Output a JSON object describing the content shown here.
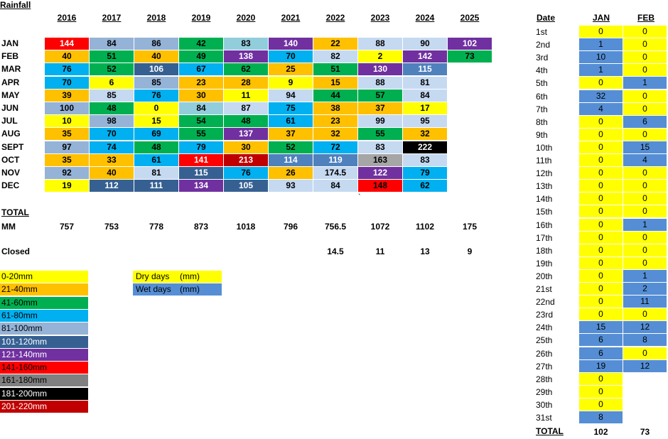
{
  "title": "Rainfall",
  "years": [
    "2016",
    "2017",
    "2018",
    "2019",
    "2020",
    "2021",
    "2022",
    "2023",
    "2024",
    "2025"
  ],
  "months": [
    "JAN",
    "FEB",
    "MAR",
    "APR",
    "MAY",
    "JUN",
    "JUL",
    "AUG",
    "SEPT",
    "OCT",
    "NOV",
    "DEC"
  ],
  "rows": [
    [
      [
        "144",
        "#ff0000",
        "#ffffff"
      ],
      [
        "84",
        "#95b3d7",
        "#000"
      ],
      [
        "86",
        "#95b3d7",
        "#000"
      ],
      [
        "42",
        "#00b050",
        "#000"
      ],
      [
        "83",
        "#92cddc",
        "#000"
      ],
      [
        "140",
        "#7030a0",
        "#ffffff"
      ],
      [
        "22",
        "#ffc000",
        "#000"
      ],
      [
        "88",
        "#c5d9f1",
        "#000"
      ],
      [
        "90",
        "#c5d9f1",
        "#000"
      ],
      [
        "102",
        "#7030a0",
        "#ffffff"
      ]
    ],
    [
      [
        "40",
        "#ffc000",
        "#000"
      ],
      [
        "51",
        "#00b050",
        "#000"
      ],
      [
        "40",
        "#ffc000",
        "#000"
      ],
      [
        "49",
        "#00b050",
        "#000"
      ],
      [
        "138",
        "#7030a0",
        "#ffffff"
      ],
      [
        "70",
        "#00b0f0",
        "#000"
      ],
      [
        "82",
        "#c5d9f1",
        "#000"
      ],
      [
        "2",
        "#ffff00",
        "#000"
      ],
      [
        "142",
        "#7030a0",
        "#ffffff"
      ],
      [
        "73",
        "#00b050",
        "#000"
      ]
    ],
    [
      [
        "76",
        "#00b0f0",
        "#000"
      ],
      [
        "52",
        "#00b050",
        "#000"
      ],
      [
        "106",
        "#366092",
        "#ffffff"
      ],
      [
        "67",
        "#00b0f0",
        "#000"
      ],
      [
        "62",
        "#00b050",
        "#000"
      ],
      [
        "25",
        "#ffc000",
        "#000"
      ],
      [
        "51",
        "#00b050",
        "#000"
      ],
      [
        "130",
        "#7030a0",
        "#ffffff"
      ],
      [
        "115",
        "#4f81bd",
        "#ffffff"
      ],
      null
    ],
    [
      [
        "70",
        "#00b0f0",
        "#000"
      ],
      [
        "6",
        "#ffff00",
        "#000"
      ],
      [
        "85",
        "#95b3d7",
        "#000"
      ],
      [
        "23",
        "#ffc000",
        "#000"
      ],
      [
        "28",
        "#ffc000",
        "#000"
      ],
      [
        "9",
        "#ffff00",
        "#000"
      ],
      [
        "15",
        "#ffc000",
        "#000"
      ],
      [
        "88",
        "#c5d9f1",
        "#000"
      ],
      [
        "81",
        "#c5d9f1",
        "#000"
      ],
      null
    ],
    [
      [
        "39",
        "#ffc000",
        "#000"
      ],
      [
        "85",
        "#c5d9f1",
        "#000"
      ],
      [
        "76",
        "#00b0f0",
        "#000"
      ],
      [
        "30",
        "#ffc000",
        "#000"
      ],
      [
        "11",
        "#ffff00",
        "#000"
      ],
      [
        "94",
        "#c5d9f1",
        "#000"
      ],
      [
        "44",
        "#00b050",
        "#000"
      ],
      [
        "57",
        "#00b050",
        "#000"
      ],
      [
        "84",
        "#c5d9f1",
        "#000"
      ],
      null
    ],
    [
      [
        "100",
        "#95b3d7",
        "#000"
      ],
      [
        "48",
        "#00b050",
        "#000"
      ],
      [
        "0",
        "#ffff00",
        "#000"
      ],
      [
        "84",
        "#92cddc",
        "#000"
      ],
      [
        "87",
        "#c5d9f1",
        "#000"
      ],
      [
        "75",
        "#00b0f0",
        "#000"
      ],
      [
        "38",
        "#ffc000",
        "#000"
      ],
      [
        "37",
        "#ffc000",
        "#000"
      ],
      [
        "17",
        "#ffff00",
        "#000"
      ],
      null
    ],
    [
      [
        "10",
        "#ffff00",
        "#000"
      ],
      [
        "98",
        "#95b3d7",
        "#000"
      ],
      [
        "15",
        "#ffff00",
        "#000"
      ],
      [
        "54",
        "#00b050",
        "#000"
      ],
      [
        "48",
        "#00b050",
        "#000"
      ],
      [
        "61",
        "#00b0f0",
        "#000"
      ],
      [
        "23",
        "#ffc000",
        "#000"
      ],
      [
        "99",
        "#c5d9f1",
        "#000"
      ],
      [
        "95",
        "#c5d9f1",
        "#000"
      ],
      null
    ],
    [
      [
        "35",
        "#ffc000",
        "#000"
      ],
      [
        "70",
        "#00b0f0",
        "#000"
      ],
      [
        "69",
        "#00b0f0",
        "#000"
      ],
      [
        "55",
        "#00b050",
        "#000"
      ],
      [
        "137",
        "#7030a0",
        "#ffffff"
      ],
      [
        "37",
        "#ffc000",
        "#000"
      ],
      [
        "32",
        "#ffc000",
        "#000"
      ],
      [
        "55",
        "#00b050",
        "#000"
      ],
      [
        "32",
        "#ffc000",
        "#000"
      ],
      null
    ],
    [
      [
        "97",
        "#95b3d7",
        "#000"
      ],
      [
        "74",
        "#00b0f0",
        "#000"
      ],
      [
        "48",
        "#00b050",
        "#000"
      ],
      [
        "79",
        "#00b0f0",
        "#000"
      ],
      [
        "30",
        "#ffc000",
        "#000"
      ],
      [
        "52",
        "#00b050",
        "#000"
      ],
      [
        "72",
        "#00b0f0",
        "#000"
      ],
      [
        "83",
        "#c5d9f1",
        "#000"
      ],
      [
        "222",
        "#000000",
        "#ffffff"
      ],
      null
    ],
    [
      [
        "35",
        "#ffc000",
        "#000"
      ],
      [
        "33",
        "#ffc000",
        "#000"
      ],
      [
        "61",
        "#00b0f0",
        "#000"
      ],
      [
        "141",
        "#ff0000",
        "#ffffff"
      ],
      [
        "213",
        "#c00000",
        "#ffffff"
      ],
      [
        "114",
        "#4f81bd",
        "#ffffff"
      ],
      [
        "119",
        "#4f81bd",
        "#ffffff"
      ],
      [
        "163",
        "#a6a6a6",
        "#000"
      ],
      [
        "83",
        "#c5d9f1",
        "#000"
      ],
      null
    ],
    [
      [
        "92",
        "#95b3d7",
        "#000"
      ],
      [
        "40",
        "#ffc000",
        "#000"
      ],
      [
        "81",
        "#c5d9f1",
        "#000"
      ],
      [
        "115",
        "#366092",
        "#ffffff"
      ],
      [
        "76",
        "#00b0f0",
        "#000"
      ],
      [
        "26",
        "#ffc000",
        "#000"
      ],
      [
        "174.5",
        "#c5d9f1",
        "#000"
      ],
      [
        "122",
        "#7030a0",
        "#ffffff"
      ],
      [
        "79",
        "#00b0f0",
        "#000"
      ],
      null
    ],
    [
      [
        "19",
        "#ffff00",
        "#000"
      ],
      [
        "112",
        "#366092",
        "#ffffff"
      ],
      [
        "111",
        "#366092",
        "#ffffff"
      ],
      [
        "134",
        "#7030a0",
        "#ffffff"
      ],
      [
        "105",
        "#366092",
        "#ffffff"
      ],
      [
        "93",
        "#c5d9f1",
        "#000"
      ],
      [
        "84",
        "#c5d9f1",
        "#000"
      ],
      [
        "148",
        "#ff0000",
        "#000"
      ],
      [
        "62",
        "#00b0f0",
        "#000"
      ],
      null
    ]
  ],
  "stray_mark": "`",
  "total_label": "TOTAL",
  "mm_label": "MM",
  "totals": [
    "757",
    "753",
    "778",
    "873",
    "1018",
    "796",
    "756.5",
    "1072",
    "1102",
    "175"
  ],
  "closed_label": "Closed",
  "closed": [
    "",
    "",
    "",
    "",
    "",
    "",
    "14.5",
    "11",
    "13",
    "9"
  ],
  "legend": [
    [
      "0-20mm",
      "#ffff00",
      "#000"
    ],
    [
      "21-40mm",
      "#ffc000",
      "#000"
    ],
    [
      "41-60mm",
      "#00b050",
      "#000"
    ],
    [
      "61-80mm",
      "#00b0f0",
      "#000"
    ],
    [
      "81-100mm",
      "#95b3d7",
      "#000"
    ],
    [
      "101-120mm",
      "#366092",
      "#ffffff"
    ],
    [
      "121-140mm",
      "#7030a0",
      "#ffffff"
    ],
    [
      "141-160mm",
      "#ff0000",
      "#000"
    ],
    [
      "161-180mm",
      "#808080",
      "#000"
    ],
    [
      "181-200mm",
      "#000000",
      "#ffffff"
    ],
    [
      "201-220mm",
      "#c00000",
      "#ffffff"
    ]
  ],
  "legend2": [
    [
      "Dry days",
      "(mm)",
      "#ffff00"
    ],
    [
      "Wet days",
      "(mm)",
      "#558ed5"
    ]
  ],
  "right": {
    "date_header": "Date",
    "jan_header": "JAN",
    "feb_header": "FEB",
    "days": [
      "1st",
      "2nd",
      "3rd",
      "4th",
      "5th",
      "6th",
      "7th",
      "8th",
      "9th",
      "10th",
      "11th",
      "12th",
      "13th",
      "14th",
      "15th",
      "16th",
      "17th",
      "18th",
      "19th",
      "20th",
      "21st",
      "22nd",
      "23rd",
      "24th",
      "25th",
      "26th",
      "27th",
      "28th",
      "29th",
      "30th",
      "31st"
    ],
    "jan": [
      "0",
      "1",
      "10",
      "1",
      "0",
      "32",
      "4",
      "0",
      "0",
      "0",
      "0",
      "0",
      "0",
      "0",
      "0",
      "0",
      "0",
      "0",
      "0",
      "0",
      "0",
      "0",
      "0",
      "15",
      "6",
      "6",
      "19",
      "0",
      "0",
      "0",
      "8"
    ],
    "feb": [
      "0",
      "0",
      "0",
      "0",
      "1",
      "0",
      "0",
      "6",
      "0",
      "15",
      "4",
      "0",
      "0",
      "0",
      "0",
      "1",
      "0",
      "0",
      "0",
      "1",
      "2",
      "11",
      "0",
      "12",
      "8",
      "0",
      "12",
      "",
      "",
      "",
      ""
    ],
    "total_label": "TOTAL",
    "jan_total": "102",
    "feb_total": "73",
    "dry_color": "#ffff00",
    "wet_color": "#558ed5"
  }
}
